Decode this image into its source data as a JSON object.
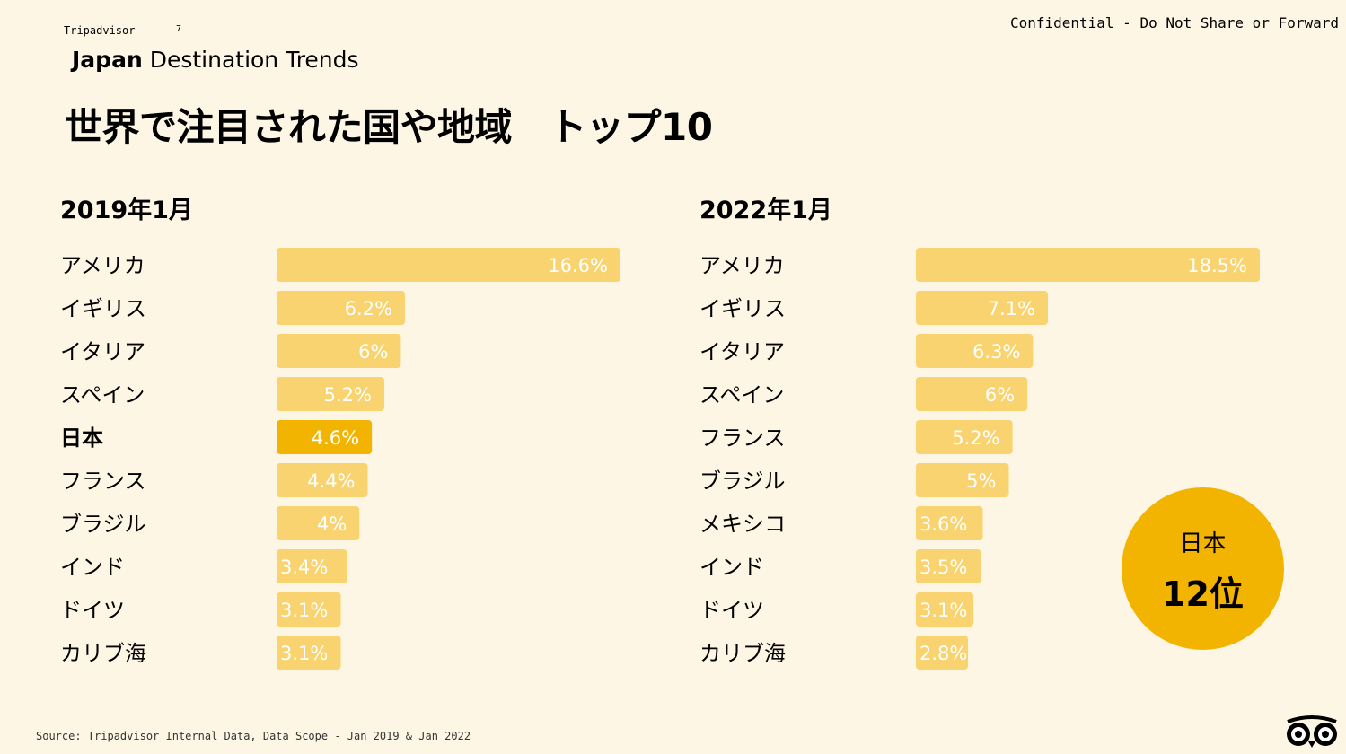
{
  "header": {
    "brand": "Tripadvisor",
    "page_number": "7",
    "confidential": "Confidential - Do Not Share or Forward",
    "deck_title_bold": "Japan",
    "deck_title_rest": " Destination Trends"
  },
  "title": "世界で注目された国や地域　トップ10",
  "callout": {
    "country": "日本",
    "rank": "12位"
  },
  "footer": {
    "source": "Source: Tripadvisor Internal Data, Data Scope - Jan 2019 & Jan 2022"
  },
  "colors": {
    "bar": "#f8d36f",
    "highlight": "#f2b400",
    "label_text": "#ffffff",
    "background": "#fef6e4"
  },
  "chart_data": [
    {
      "type": "bar",
      "orientation": "horizontal",
      "title": "2019年1月",
      "categories": [
        "アメリカ",
        "イギリス",
        "イタリア",
        "スペイン",
        "日本",
        "フランス",
        "ブラジル",
        "インド",
        "ドイツ",
        "カリブ海"
      ],
      "values": [
        16.6,
        6.2,
        6,
        5.2,
        4.6,
        4.4,
        4,
        3.4,
        3.1,
        3.1
      ],
      "value_labels": [
        "16.6%",
        "6.2%",
        "6%",
        "5.2%",
        "4.6%",
        "4.4%",
        "4%",
        "3.4%",
        "3.1%",
        "3.1%"
      ],
      "highlight": "日本",
      "unit": "%"
    },
    {
      "type": "bar",
      "orientation": "horizontal",
      "title": "2022年1月",
      "categories": [
        "アメリカ",
        "イギリス",
        "イタリア",
        "スペイン",
        "フランス",
        "ブラジル",
        "メキシコ",
        "インド",
        "ドイツ",
        "カリブ海"
      ],
      "values": [
        18.5,
        7.1,
        6.3,
        6,
        5.2,
        5,
        3.6,
        3.5,
        3.1,
        2.8
      ],
      "value_labels": [
        "18.5%",
        "7.1%",
        "6.3%",
        "6%",
        "5.2%",
        "5%",
        "3.6%",
        "3.5%",
        "3.1%",
        "2.8%"
      ],
      "highlight": null,
      "unit": "%"
    }
  ]
}
